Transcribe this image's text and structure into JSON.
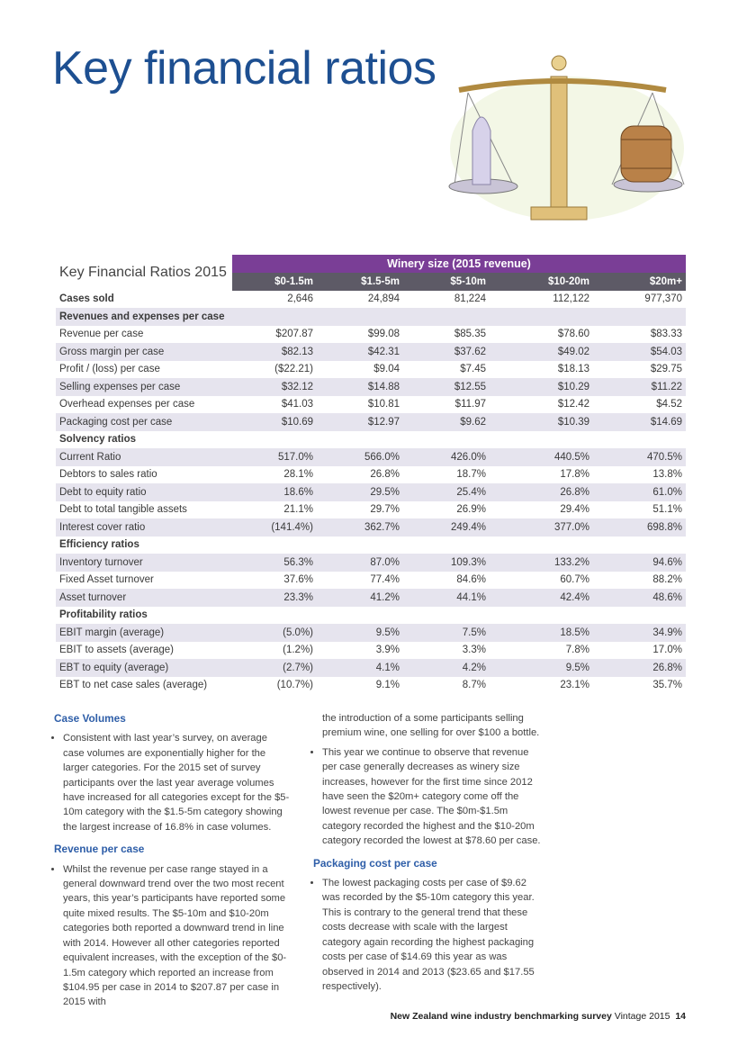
{
  "title": "Key financial ratios",
  "table": {
    "caption": "Key Financial Ratios 2015",
    "group_header": "Winery size (2015 revenue)",
    "columns": [
      "$0-1.5m",
      "$1.5-5m",
      "$5-10m",
      "$10-20m",
      "$20m+"
    ],
    "rows": [
      [
        "Cases sold",
        "2,646",
        "24,894",
        "81,224",
        "112,122",
        "977,370"
      ],
      [
        "Revenues and expenses per case"
      ],
      [
        "Revenue per case",
        "$207.87",
        "$99.08",
        "$85.35",
        "$78.60",
        "$83.33"
      ],
      [
        "Gross margin per case",
        "$82.13",
        "$42.31",
        "$37.62",
        "$49.02",
        "$54.03"
      ],
      [
        "Profit / (loss) per case",
        "($22.21)",
        "$9.04",
        "$7.45",
        "$18.13",
        "$29.75"
      ],
      [
        "Selling expenses per case",
        "$32.12",
        "$14.88",
        "$12.55",
        "$10.29",
        "$11.22"
      ],
      [
        "Overhead expenses per case",
        "$41.03",
        "$10.81",
        "$11.97",
        "$12.42",
        "$4.52"
      ],
      [
        "Packaging cost per case",
        "$10.69",
        "$12.97",
        "$9.62",
        "$10.39",
        "$14.69"
      ],
      [
        "Solvency ratios"
      ],
      [
        "Current Ratio",
        "517.0%",
        "566.0%",
        "426.0%",
        "440.5%",
        "470.5%"
      ],
      [
        "Debtors to sales ratio",
        "28.1%",
        "26.8%",
        "18.7%",
        "17.8%",
        "13.8%"
      ],
      [
        "Debt to equity ratio",
        "18.6%",
        "29.5%",
        "25.4%",
        "26.8%",
        "61.0%"
      ],
      [
        "Debt to total tangible assets",
        "21.1%",
        "29.7%",
        "26.9%",
        "29.4%",
        "51.1%"
      ],
      [
        "Interest cover ratio",
        "(141.4%)",
        "362.7%",
        "249.4%",
        "377.0%",
        "698.8%"
      ],
      [
        "Efficiency ratios"
      ],
      [
        "Inventory turnover",
        "56.3%",
        "87.0%",
        "109.3%",
        "133.2%",
        "94.6%"
      ],
      [
        "Fixed Asset turnover",
        "37.6%",
        "77.4%",
        "84.6%",
        "60.7%",
        "88.2%"
      ],
      [
        "Asset turnover",
        "23.3%",
        "41.2%",
        "44.1%",
        "42.4%",
        "48.6%"
      ],
      [
        "Profitability ratios"
      ],
      [
        "EBIT margin (average)",
        "(5.0%)",
        "9.5%",
        "7.5%",
        "18.5%",
        "34.9%"
      ],
      [
        "EBIT to assets (average)",
        "(1.2%)",
        "3.9%",
        "3.3%",
        "7.8%",
        "17.0%"
      ],
      [
        "EBT to equity (average)",
        "(2.7%)",
        "4.1%",
        "4.2%",
        "9.5%",
        "26.8%"
      ],
      [
        "EBT to net case sales (average)",
        "(10.7%)",
        "9.1%",
        "8.7%",
        "23.1%",
        "35.7%"
      ]
    ]
  },
  "text": {
    "case_volumes": {
      "heading": "Case Volumes",
      "bullets": [
        "Consistent with last year’s survey, on average case volumes are exponentially higher for the larger categories. For the 2015 set of survey participants over the last year average volumes have increased for all categories except for the $5-10m category with the $1.5-5m category showing the largest increase of 16.8% in case volumes."
      ]
    },
    "revenue_per_case": {
      "heading": "Revenue per case",
      "bullets": [
        "Whilst the revenue per case range stayed in a general downward trend over the two most recent years, this year’s participants have reported some quite mixed results. The $5-10m and $10-20m categories both reported a downward trend in line with 2014. However all other categories reported equivalent increases, with the exception of the $0-1.5m category which reported an increase from $104.95 per case in 2014 to $207.87 per case in 2015 with",
        "This year we continue to observe that revenue per case generally decreases as winery size increases, however for the first time since 2012 have seen the $20m+ category come off the lowest revenue per case. The $0m-$1.5m category recorded the highest and the $10-20m category recorded the lowest at $78.60 per case."
      ],
      "continued": "the introduction of a some participants selling premium wine, one selling for over $100 a bottle."
    },
    "packaging_cost": {
      "heading": "Packaging cost per case",
      "bullets": [
        "The lowest packaging costs per case of $9.62 was recorded by the $5-10m category this year. This is contrary to the general trend that these costs decrease with scale with the largest category again recording the highest packaging costs per case of $14.69 this year as was observed in 2014 and 2013 ($23.65 and $17.55 respectively)."
      ]
    }
  },
  "footer": {
    "publication": "New Zealand wine industry benchmarking survey",
    "edition": "Vintage 2015",
    "page": "14"
  }
}
